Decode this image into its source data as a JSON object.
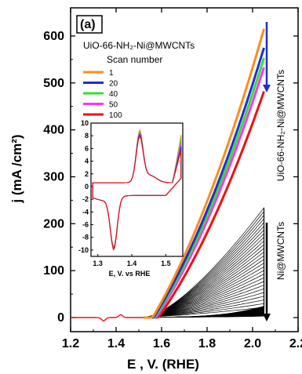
{
  "chart_data": {
    "type": "line",
    "panel_label": "(a)",
    "xlabel": "E , V. (RHE)",
    "ylabel": "j (mA /cm²)",
    "xlim": [
      1.2,
      2.2
    ],
    "ylim": [
      -30,
      660
    ],
    "x_ticks": [
      "1.2",
      "1.4",
      "1.6",
      "1.8",
      "2.0",
      "2.2"
    ],
    "y_ticks": [
      "0",
      "100",
      "200",
      "300",
      "400",
      "500",
      "600"
    ],
    "y_tick_values": [
      0,
      100,
      200,
      300,
      400,
      500,
      600
    ],
    "x_tick_values": [
      1.2,
      1.4,
      1.6,
      1.8,
      2.0,
      2.2
    ],
    "legend_title": "Scan number",
    "material_label": "UiO-66-NH₂-Ni@MWCNTs",
    "series": [
      {
        "name": "1",
        "color": "#ff8c1a",
        "end_value": 615,
        "onset": 1.56
      },
      {
        "name": "20",
        "color": "#1f2fcc",
        "end_value": 575,
        "onset": 1.565
      },
      {
        "name": "40",
        "color": "#33dd33",
        "end_value": 553,
        "onset": 1.57
      },
      {
        "name": "50",
        "color": "#ff33ff",
        "end_value": 533,
        "onset": 1.575
      },
      {
        "name": "100",
        "color": "#ee1111",
        "end_value": 482,
        "onset": 1.585
      }
    ],
    "annotations": {
      "right_top": "UiO-66-NH₂-Ni@MWCNTs",
      "right_bottom": "Ni@MWCNTs"
    },
    "ni_band": {
      "x_start": 1.54,
      "x_end": 2.05,
      "max_value": 232,
      "min_value": 20,
      "color": "#000000"
    },
    "inset": {
      "xlabel": "E, V. vs RHE",
      "xlim": [
        1.28,
        1.55
      ],
      "ylim": [
        -11,
        10
      ],
      "x_ticks": [
        "1.3",
        "1.4",
        "1.5"
      ],
      "x_tick_values": [
        1.3,
        1.4,
        1.5
      ],
      "y_ticks": [
        "10",
        "8",
        "6",
        "4",
        "2",
        "0",
        "-2",
        "-4",
        "-6",
        "-8",
        "-10"
      ],
      "y_tick_values": [
        10,
        8,
        6,
        4,
        2,
        0,
        -2,
        -4,
        -6,
        -8,
        -10
      ]
    }
  }
}
